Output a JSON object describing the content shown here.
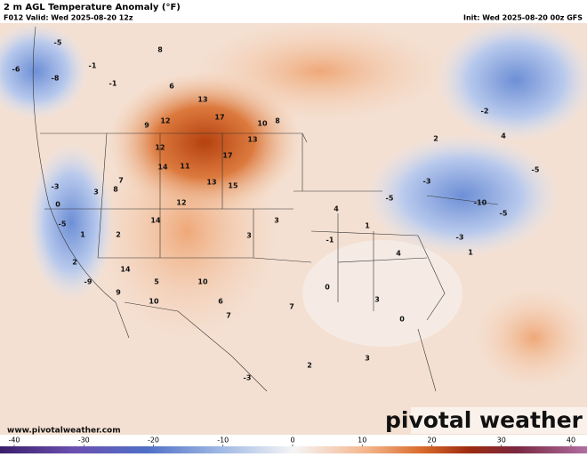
{
  "header": {
    "title": "2 m AGL Temperature Anomaly (°F)",
    "valid": "F012 Valid: Wed 2025-08-20 12z",
    "init": "Init: Wed 2025-08-20 00z GFS"
  },
  "map": {
    "station_anomalies": [
      -5,
      -6,
      -8,
      -1,
      -1,
      8,
      6,
      13,
      17,
      12,
      9,
      10,
      8,
      13,
      17,
      12,
      14,
      11,
      13,
      15,
      12,
      14,
      7,
      8,
      3,
      -3,
      0,
      -5,
      1,
      2,
      14,
      5,
      10,
      10,
      6,
      7,
      -9,
      2,
      9,
      3,
      3,
      4,
      -5,
      -3,
      -1,
      1,
      4,
      0,
      3,
      0,
      -5,
      -10,
      -3,
      1,
      2,
      3,
      -3,
      7,
      -5,
      2,
      4,
      -2
    ]
  },
  "footer": {
    "website": "www.pivotalweather.com",
    "brand": "pivotal weather"
  },
  "colorbar": {
    "ticks": [
      -40,
      -30,
      -20,
      -10,
      0,
      10,
      20,
      30,
      40
    ],
    "range": [
      -40,
      40
    ]
  }
}
